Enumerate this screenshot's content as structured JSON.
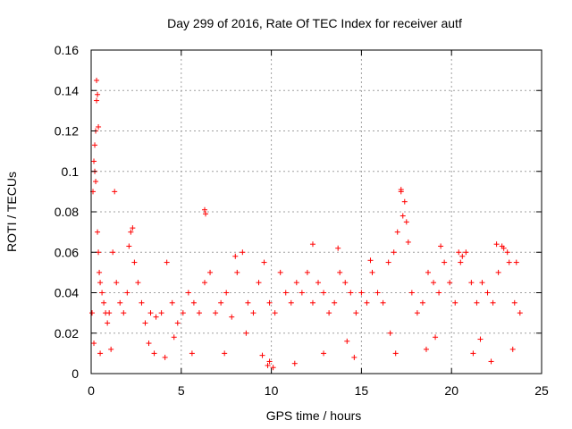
{
  "chart_data": {
    "type": "scatter",
    "title": "Day 299 of 2016, Rate Of TEC Index for receiver autf",
    "xlabel": "GPS time / hours",
    "ylabel": "ROTI / TECUs",
    "xlim": [
      0,
      25
    ],
    "ylim": [
      0,
      0.16
    ],
    "xticks": [
      0,
      5,
      10,
      15,
      20,
      25
    ],
    "xtick_labels": [
      "0",
      "5",
      "10",
      "15",
      "20",
      "25"
    ],
    "yticks": [
      0,
      0.02,
      0.04,
      0.06,
      0.08,
      0.1,
      0.12,
      0.14,
      0.16
    ],
    "ytick_labels": [
      "0",
      "0.02",
      "0.04",
      "0.06",
      "0.08",
      "0.1",
      "0.12",
      "0.14",
      "0.16"
    ],
    "grid": true,
    "marker": "+",
    "marker_color": "#ff0000",
    "series": [
      {
        "name": "ROTI",
        "x": [
          0.05,
          0.1,
          0.15,
          0.2,
          0.25,
          0.3,
          0.35,
          0.4,
          0.45,
          0.5,
          0.6,
          0.7,
          0.8,
          0.9,
          1.0,
          1.2,
          1.4,
          1.6,
          1.8,
          2.0,
          2.2,
          2.4,
          2.6,
          2.8,
          3.0,
          3.3,
          3.6,
          3.9,
          4.2,
          4.5,
          4.8,
          5.1,
          5.4,
          5.7,
          6.0,
          6.3,
          6.6,
          6.9,
          7.2,
          7.5,
          7.8,
          8.1,
          8.4,
          8.7,
          9.0,
          9.3,
          9.6,
          9.9,
          10.2,
          10.5,
          10.8,
          11.1,
          11.4,
          11.7,
          12.0,
          12.3,
          12.6,
          12.9,
          13.2,
          13.5,
          13.8,
          14.1,
          14.4,
          14.7,
          15.0,
          15.3,
          15.6,
          15.9,
          16.2,
          16.5,
          16.8,
          17.0,
          17.2,
          17.4,
          17.6,
          17.8,
          18.1,
          18.4,
          18.7,
          19.0,
          19.3,
          19.6,
          19.9,
          20.2,
          20.5,
          20.8,
          21.1,
          21.4,
          21.7,
          22.0,
          22.3,
          22.6,
          22.9,
          23.2,
          23.5,
          23.8,
          0.3,
          0.35,
          0.4,
          0.2,
          0.25,
          1.3,
          6.3,
          6.35,
          17.2,
          17.3,
          17.5,
          2.3,
          2.1,
          8.0,
          12.3,
          13.7,
          15.5,
          19.4,
          20.4,
          20.6,
          22.5,
          22.8,
          23.1,
          23.6,
          0.15,
          0.5,
          1.1,
          3.5,
          4.1,
          5.6,
          7.4,
          9.5,
          10.1,
          11.3,
          12.9,
          14.6,
          16.9,
          18.6,
          21.2,
          22.2,
          9.8,
          9.9,
          3.2,
          4.6,
          8.6,
          14.2,
          16.6,
          19.1,
          21.6,
          23.4
        ],
        "y": [
          0.03,
          0.09,
          0.105,
          0.1,
          0.12,
          0.135,
          0.07,
          0.06,
          0.05,
          0.045,
          0.04,
          0.035,
          0.03,
          0.025,
          0.03,
          0.06,
          0.045,
          0.035,
          0.03,
          0.04,
          0.07,
          0.055,
          0.045,
          0.035,
          0.025,
          0.03,
          0.028,
          0.03,
          0.055,
          0.035,
          0.025,
          0.03,
          0.04,
          0.035,
          0.03,
          0.045,
          0.05,
          0.03,
          0.035,
          0.04,
          0.028,
          0.05,
          0.06,
          0.035,
          0.03,
          0.045,
          0.055,
          0.035,
          0.03,
          0.05,
          0.04,
          0.035,
          0.045,
          0.04,
          0.05,
          0.035,
          0.045,
          0.04,
          0.03,
          0.035,
          0.05,
          0.045,
          0.04,
          0.03,
          0.04,
          0.035,
          0.05,
          0.04,
          0.035,
          0.055,
          0.06,
          0.07,
          0.09,
          0.085,
          0.065,
          0.04,
          0.03,
          0.035,
          0.05,
          0.045,
          0.04,
          0.055,
          0.045,
          0.035,
          0.055,
          0.06,
          0.045,
          0.035,
          0.045,
          0.04,
          0.035,
          0.05,
          0.062,
          0.055,
          0.035,
          0.03,
          0.145,
          0.138,
          0.122,
          0.113,
          0.095,
          0.09,
          0.081,
          0.079,
          0.091,
          0.078,
          0.075,
          0.072,
          0.063,
          0.058,
          0.064,
          0.062,
          0.056,
          0.063,
          0.06,
          0.058,
          0.064,
          0.063,
          0.06,
          0.055,
          0.015,
          0.01,
          0.012,
          0.01,
          0.008,
          0.01,
          0.01,
          0.009,
          0.003,
          0.005,
          0.01,
          0.008,
          0.01,
          0.012,
          0.01,
          0.006,
          0.004,
          0.006,
          0.015,
          0.018,
          0.02,
          0.016,
          0.02,
          0.018,
          0.017,
          0.012
        ]
      }
    ]
  }
}
